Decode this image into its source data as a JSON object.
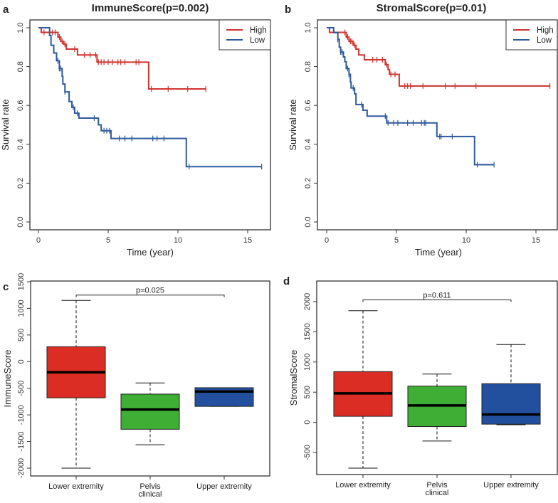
{
  "chart_data": [
    {
      "panel_label": "a",
      "type": "line",
      "subtype": "kaplan-meier",
      "title": "ImmuneScore(p=0.002)",
      "xlabel": "Time (year)",
      "ylabel": "Survival rate",
      "xlim": [
        0,
        16.5
      ],
      "ylim": [
        0,
        1.0
      ],
      "xticks": [
        "0",
        "5",
        "10",
        "15"
      ],
      "yticks": [
        "0.0",
        "0.2",
        "0.4",
        "0.6",
        "0.8",
        "1.0"
      ],
      "legend": {
        "placement": "top-right",
        "entries": [
          "High",
          "Low"
        ]
      },
      "series": [
        {
          "name": "High",
          "color": "#d0322c",
          "end": 12,
          "steps": [
            [
              0,
              1
            ],
            [
              0.2,
              0.976
            ],
            [
              1.4,
              0.952
            ],
            [
              1.6,
              0.93
            ],
            [
              1.8,
              0.915
            ],
            [
              2.0,
              0.89
            ],
            [
              2.8,
              0.86
            ],
            [
              4.2,
              0.823
            ],
            [
              7.9,
              0.685
            ]
          ],
          "censored": [
            0.4,
            1.0,
            1.2,
            1.5,
            1.7,
            1.9,
            2.6,
            3.3,
            3.7,
            4.1,
            4.3,
            4.5,
            4.7,
            5.0,
            5.3,
            5.7,
            5.9,
            6.2,
            7.0,
            7.2,
            8.1,
            9.3,
            10.7,
            12
          ]
        },
        {
          "name": "Low",
          "color": "#2c5a9c",
          "end": 16,
          "steps": [
            [
              0,
              1
            ],
            [
              0.8,
              0.96
            ],
            [
              0.9,
              0.91
            ],
            [
              1.1,
              0.87
            ],
            [
              1.3,
              0.83
            ],
            [
              1.5,
              0.79
            ],
            [
              1.7,
              0.75
            ],
            [
              1.75,
              0.71
            ],
            [
              1.9,
              0.67
            ],
            [
              2.2,
              0.62
            ],
            [
              2.4,
              0.59
            ],
            [
              2.6,
              0.56
            ],
            [
              2.9,
              0.535
            ],
            [
              4.3,
              0.5
            ],
            [
              4.5,
              0.47
            ],
            [
              5.2,
              0.43
            ],
            [
              10.6,
              0.285
            ]
          ],
          "censored": [
            1.4,
            1.5,
            1.6,
            1.9,
            2.5,
            2.8,
            4.0,
            4.7,
            4.9,
            5.1,
            5.8,
            6.2,
            6.7,
            8.2,
            8.5,
            9.0,
            10.8,
            16
          ]
        }
      ]
    },
    {
      "panel_label": "b",
      "type": "line",
      "subtype": "kaplan-meier",
      "title": "StromalScore(p=0.01)",
      "xlabel": "Time (year)",
      "ylabel": "Survival rate",
      "xlim": [
        0,
        16.5
      ],
      "ylim": [
        0,
        1.0
      ],
      "xticks": [
        "0",
        "5",
        "10",
        "15"
      ],
      "yticks": [
        "0.0",
        "0.2",
        "0.4",
        "0.6",
        "0.8",
        "1.0"
      ],
      "legend": {
        "placement": "top-right",
        "entries": [
          "High",
          "Low"
        ]
      },
      "series": [
        {
          "name": "High",
          "color": "#d0322c",
          "end": 16,
          "steps": [
            [
              0,
              1
            ],
            [
              0.2,
              0.976
            ],
            [
              1.4,
              0.952
            ],
            [
              1.6,
              0.93
            ],
            [
              1.9,
              0.91
            ],
            [
              2.1,
              0.89
            ],
            [
              2.3,
              0.86
            ],
            [
              2.7,
              0.835
            ],
            [
              4.2,
              0.81
            ],
            [
              4.4,
              0.785
            ],
            [
              4.5,
              0.76
            ],
            [
              5.2,
              0.7
            ]
          ],
          "censored": [
            1.3,
            1.5,
            1.7,
            1.8,
            2.0,
            3.3,
            3.6,
            4.0,
            4.3,
            4.6,
            4.9,
            5.6,
            5.8,
            6.0,
            6.9,
            8.5,
            9.2,
            10.7,
            16
          ]
        },
        {
          "name": "Low",
          "color": "#2c5a9c",
          "end": 12,
          "steps": [
            [
              0,
              1
            ],
            [
              0.5,
              0.975
            ],
            [
              0.8,
              0.94
            ],
            [
              0.9,
              0.9
            ],
            [
              1.0,
              0.875
            ],
            [
              1.2,
              0.85
            ],
            [
              1.3,
              0.825
            ],
            [
              1.4,
              0.79
            ],
            [
              1.6,
              0.76
            ],
            [
              1.7,
              0.72
            ],
            [
              1.75,
              0.69
            ],
            [
              2.0,
              0.66
            ],
            [
              2.1,
              0.605
            ],
            [
              2.6,
              0.575
            ],
            [
              2.9,
              0.545
            ],
            [
              4.3,
              0.51
            ],
            [
              7.9,
              0.44
            ],
            [
              10.6,
              0.295
            ]
          ],
          "censored": [
            0.8,
            1.0,
            1.1,
            1.5,
            1.6,
            1.9,
            2.5,
            4.2,
            4.4,
            4.8,
            5.1,
            5.8,
            6.2,
            6.8,
            7.0,
            7.1,
            8.1,
            8.2,
            9.0,
            10.8,
            12
          ]
        }
      ]
    },
    {
      "panel_label": "c",
      "type": "box",
      "title": "",
      "xlabel": "",
      "ylabel": "ImmuneScore",
      "ylim": [
        -2100,
        1500
      ],
      "yticks": [
        "1500",
        "1000",
        "500",
        "0",
        "-500",
        "-1000",
        "-1500",
        "-2000"
      ],
      "categories": [
        [
          "Lower extremity"
        ],
        [
          "Pelvis",
          "clinical"
        ],
        [
          "Upper extremity"
        ]
      ],
      "boxes": [
        {
          "min": -2000,
          "q1": -680,
          "median": -200,
          "q3": 280,
          "max": 1150,
          "color": "#dc2d24"
        },
        {
          "min": -1560,
          "q1": -1270,
          "median": -900,
          "q3": -610,
          "max": -400,
          "color": "#3fae35"
        },
        {
          "min": -840,
          "q1": -840,
          "median": -560,
          "q3": -490,
          "max": -490,
          "color": "#22509f"
        }
      ],
      "annotation": {
        "text": "p=0.025",
        "from": 0,
        "to": 2,
        "y": 1250
      }
    },
    {
      "panel_label": "d",
      "type": "box",
      "title": "",
      "xlabel": "",
      "ylabel": "StromalScore",
      "ylim": [
        -880,
        2350
      ],
      "yticks": [
        "2000",
        "1500",
        "1000",
        "500",
        "0",
        "-500"
      ],
      "categories": [
        [
          "Lower extremity"
        ],
        [
          "Pelvis",
          "clinical"
        ],
        [
          "Upper extremity"
        ]
      ],
      "boxes": [
        {
          "min": -760,
          "q1": 100,
          "median": 480,
          "q3": 840,
          "max": 1850,
          "color": "#dc2d24"
        },
        {
          "min": -310,
          "q1": -70,
          "median": 280,
          "q3": 600,
          "max": 800,
          "color": "#3fae35"
        },
        {
          "min": -40,
          "q1": -30,
          "median": 130,
          "q3": 640,
          "max": 1290,
          "color": "#22509f"
        }
      ],
      "annotation": {
        "text": "p=0.611",
        "from": 0,
        "to": 2,
        "y": 2030
      }
    }
  ]
}
